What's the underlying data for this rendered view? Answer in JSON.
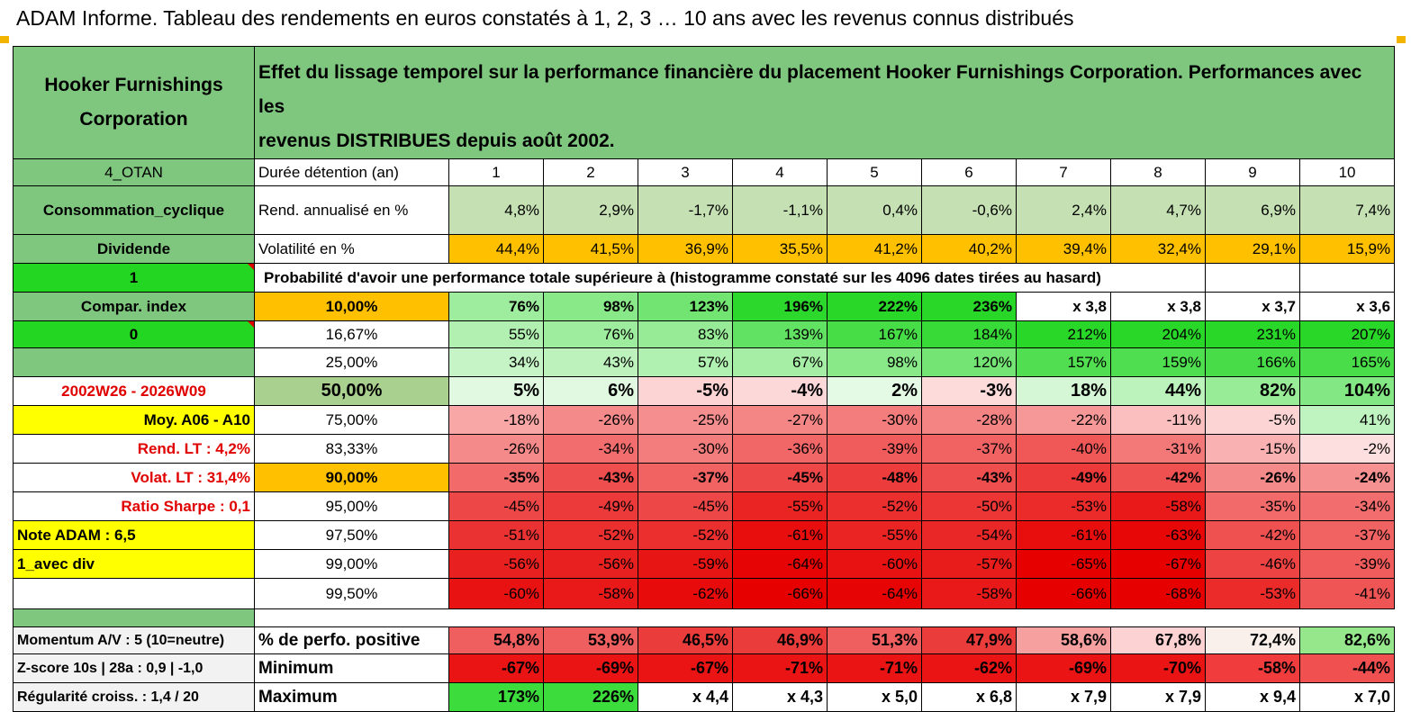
{
  "title": "ADAM Informe. Tableau des rendements en euros constatés à 1, 2, 3 … 10 ans avec les revenus connus distribués",
  "company": {
    "line1": "Hooker Furnishings",
    "line2": "Corporation"
  },
  "header_text": {
    "line1": "Effet du lissage temporel sur la performance financière du placement Hooker Furnishings Corporation. Performances avec les",
    "line2": "revenus DISTRIBUES depuis août 2002."
  },
  "sidebar": {
    "category": "4_OTAN",
    "sector": "Consommation_cyclique",
    "dividend": "Dividende",
    "selector1": "1",
    "compar": "Compar. index",
    "selector0": "0",
    "blank": "",
    "period": "2002W26 - 2026W09",
    "avg": "Moy. A06 - A10",
    "rend_lt": "Rend. LT :   4,2%",
    "volat_lt": "Volat. LT :   31,4%",
    "sharpe": "Ratio Sharpe :    0,1",
    "note": "Note ADAM : 6,5",
    "div": "1_avec div",
    "momentum": "Momentum A/V : 5 (10=neutre)",
    "zscore": "Z-score 10s | 28a : 0,9 | -1,0",
    "regularite": "Régularité croiss. : 1,4 / 20"
  },
  "duration_label": "Durée détention (an)",
  "years": [
    "1",
    "2",
    "3",
    "4",
    "5",
    "6",
    "7",
    "8",
    "9",
    "10"
  ],
  "rend_label": "Rend. annualisé en %",
  "rend": [
    "4,8%",
    "2,9%",
    "-1,7%",
    "-1,1%",
    "0,4%",
    "-0,6%",
    "2,4%",
    "4,7%",
    "6,9%",
    "7,4%"
  ],
  "vol_label": "Volatilité en %",
  "vol": [
    "44,4%",
    "41,5%",
    "36,9%",
    "35,5%",
    "41,2%",
    "40,2%",
    "39,4%",
    "32,4%",
    "29,1%",
    "15,9%"
  ],
  "prob_title": "Probabilité d'avoir une performance totale supérieure à (histogramme constaté sur les 4096 dates tirées au hasard)",
  "percentiles": [
    {
      "p": "10,00%",
      "v": [
        "76%",
        "98%",
        "123%",
        "196%",
        "222%",
        "236%",
        "x 3,8",
        "x 3,8",
        "x 3,7",
        "x 3,6"
      ]
    },
    {
      "p": "16,67%",
      "v": [
        "55%",
        "76%",
        "83%",
        "139%",
        "167%",
        "184%",
        "212%",
        "204%",
        "231%",
        "207%"
      ]
    },
    {
      "p": "25,00%",
      "v": [
        "34%",
        "43%",
        "57%",
        "67%",
        "98%",
        "120%",
        "157%",
        "159%",
        "166%",
        "165%"
      ]
    },
    {
      "p": "50,00%",
      "v": [
        "5%",
        "6%",
        "-5%",
        "-4%",
        "2%",
        "-3%",
        "18%",
        "44%",
        "82%",
        "104%"
      ]
    },
    {
      "p": "75,00%",
      "v": [
        "-18%",
        "-26%",
        "-25%",
        "-27%",
        "-30%",
        "-28%",
        "-22%",
        "-11%",
        "-5%",
        "41%"
      ]
    },
    {
      "p": "83,33%",
      "v": [
        "-26%",
        "-34%",
        "-30%",
        "-36%",
        "-39%",
        "-37%",
        "-40%",
        "-31%",
        "-15%",
        "-2%"
      ]
    },
    {
      "p": "90,00%",
      "v": [
        "-35%",
        "-43%",
        "-37%",
        "-45%",
        "-48%",
        "-43%",
        "-49%",
        "-42%",
        "-26%",
        "-24%"
      ]
    },
    {
      "p": "95,00%",
      "v": [
        "-45%",
        "-49%",
        "-45%",
        "-55%",
        "-52%",
        "-50%",
        "-53%",
        "-58%",
        "-35%",
        "-34%"
      ]
    },
    {
      "p": "97,50%",
      "v": [
        "-51%",
        "-52%",
        "-52%",
        "-61%",
        "-55%",
        "-54%",
        "-61%",
        "-63%",
        "-42%",
        "-37%"
      ]
    },
    {
      "p": "99,00%",
      "v": [
        "-56%",
        "-56%",
        "-59%",
        "-64%",
        "-60%",
        "-57%",
        "-65%",
        "-67%",
        "-46%",
        "-39%"
      ]
    },
    {
      "p": "99,50%",
      "v": [
        "-60%",
        "-58%",
        "-62%",
        "-66%",
        "-64%",
        "-58%",
        "-66%",
        "-68%",
        "-53%",
        "-41%"
      ]
    }
  ],
  "pos_label": "% de perfo. positive",
  "pos": [
    "54,8%",
    "53,9%",
    "46,5%",
    "46,9%",
    "51,3%",
    "47,9%",
    "58,6%",
    "67,8%",
    "72,4%",
    "82,6%"
  ],
  "min_label": "Minimum",
  "min": [
    "-67%",
    "-69%",
    "-67%",
    "-71%",
    "-71%",
    "-62%",
    "-69%",
    "-70%",
    "-58%",
    "-44%"
  ],
  "max_label": "Maximum",
  "max": [
    "173%",
    "226%",
    "x 4,4",
    "x 4,3",
    "x 5,0",
    "x 6,8",
    "x 7,9",
    "x 7,9",
    "x 9,4",
    "x 7,0"
  ],
  "colors": {
    "header_green": "#7fc77f",
    "bright_green": "#22d622",
    "orange": "#ffc000",
    "yellow": "#ffff00",
    "light_green": "#c5e0b3",
    "mid_green": "#a9d08e",
    "red_text": "#e00000"
  }
}
